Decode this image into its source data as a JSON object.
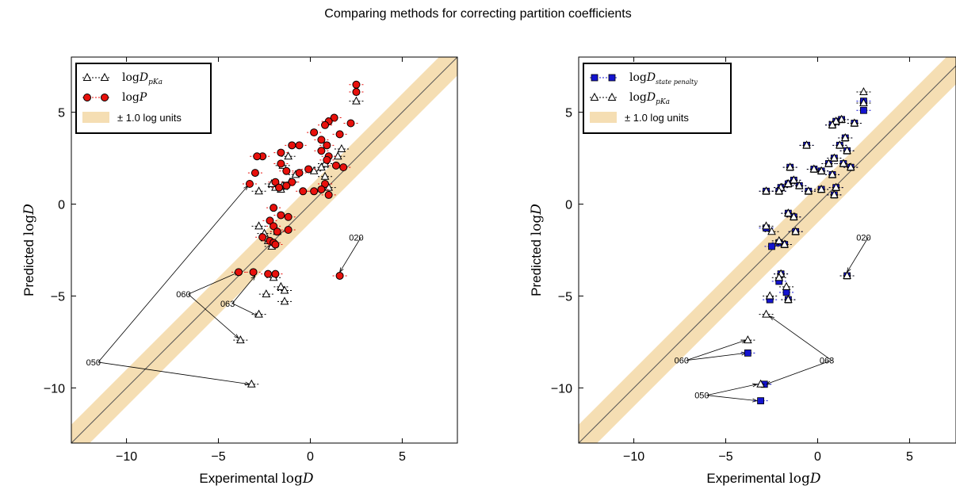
{
  "title": "Comparing methods for correcting partition coefficients",
  "colors": {
    "band": "#f5deb3",
    "red": "#e8110c",
    "blue": "#1414d0",
    "black": "#000000"
  },
  "chart_data": [
    {
      "type": "scatter",
      "xlabel": "Experimental logD",
      "ylabel": "Predicted logD",
      "xlim": [
        -13,
        8
      ],
      "ylim": [
        -13,
        8
      ],
      "xticks": [
        -10,
        -5,
        0,
        5
      ],
      "yticks": [
        -10,
        -5,
        0,
        5
      ],
      "band_half_width": 1.0,
      "legend_position": "upper left",
      "legend": [
        "logD pKa",
        "logP",
        "± 1.0 log units"
      ],
      "series": [
        {
          "name": "logD pKa",
          "marker": "open-triangle",
          "points": [
            [
              2.5,
              5.6
            ],
            [
              1.7,
              3.0
            ],
            [
              1.5,
              2.6
            ],
            [
              0.8,
              2.2
            ],
            [
              0.6,
              2.0
            ],
            [
              0.2,
              1.8
            ],
            [
              -0.8,
              1.6
            ],
            [
              -1.1,
              1.2
            ],
            [
              -1.5,
              1.0
            ],
            [
              -1.6,
              0.8
            ],
            [
              -1.9,
              0.9
            ],
            [
              -2.1,
              1.1
            ],
            [
              -2.8,
              0.7
            ],
            [
              -1.5,
              2.1
            ],
            [
              -1.2,
              2.6
            ],
            [
              0.8,
              1.5
            ],
            [
              1.0,
              0.9
            ],
            [
              -2.8,
              -1.2
            ],
            [
              -2.5,
              -1.6
            ],
            [
              -2.3,
              -2.0
            ],
            [
              -2.1,
              -2.3
            ],
            [
              -1.8,
              -1.5
            ],
            [
              -2.0,
              -4.0
            ],
            [
              -1.6,
              -4.5
            ],
            [
              -1.4,
              -4.7
            ],
            [
              -1.4,
              -5.3
            ],
            [
              -2.4,
              -4.9
            ],
            [
              -2.8,
              -6.0
            ],
            [
              -3.8,
              -7.4
            ],
            [
              -3.2,
              -9.8
            ]
          ]
        },
        {
          "name": "logP",
          "marker": "filled-circle",
          "points": [
            [
              2.5,
              6.5
            ],
            [
              2.5,
              6.1
            ],
            [
              1.3,
              4.7
            ],
            [
              1.0,
              4.5
            ],
            [
              0.8,
              4.3
            ],
            [
              2.2,
              4.4
            ],
            [
              1.6,
              3.8
            ],
            [
              0.2,
              3.9
            ],
            [
              -0.6,
              3.2
            ],
            [
              -1.0,
              3.2
            ],
            [
              0.6,
              3.5
            ],
            [
              0.9,
              3.2
            ],
            [
              -1.6,
              2.8
            ],
            [
              -1.6,
              2.2
            ],
            [
              -1.3,
              1.8
            ],
            [
              -2.6,
              2.6
            ],
            [
              -2.9,
              2.6
            ],
            [
              -3.0,
              1.7
            ],
            [
              -3.3,
              1.1
            ],
            [
              0.6,
              2.9
            ],
            [
              1.0,
              2.6
            ],
            [
              1.4,
              2.1
            ],
            [
              1.8,
              2.0
            ],
            [
              0.9,
              2.4
            ],
            [
              -0.1,
              1.9
            ],
            [
              -0.6,
              1.7
            ],
            [
              -1.0,
              1.2
            ],
            [
              -1.3,
              1.0
            ],
            [
              -1.9,
              1.2
            ],
            [
              -1.7,
              0.9
            ],
            [
              0.2,
              0.7
            ],
            [
              0.8,
              1.1
            ],
            [
              1.0,
              0.5
            ],
            [
              0.6,
              0.8
            ],
            [
              -0.4,
              0.7
            ],
            [
              -2.0,
              -0.2
            ],
            [
              -1.6,
              -0.6
            ],
            [
              -1.2,
              -0.7
            ],
            [
              -2.2,
              -0.9
            ],
            [
              -2.0,
              -1.2
            ],
            [
              -1.8,
              -1.5
            ],
            [
              -1.2,
              -1.4
            ],
            [
              -2.6,
              -1.8
            ],
            [
              -2.2,
              -2.0
            ],
            [
              -2.0,
              -2.1
            ],
            [
              -1.9,
              -2.2
            ],
            [
              -2.3,
              -3.8
            ],
            [
              -1.9,
              -3.8
            ],
            [
              -3.9,
              -3.7
            ],
            [
              -3.1,
              -3.7
            ],
            [
              1.6,
              -3.9
            ]
          ]
        }
      ],
      "annotations": [
        {
          "label": "020",
          "text_at": [
            2.5,
            -1.8
          ],
          "arrow_to": [
            1.6,
            -3.7
          ]
        },
        {
          "label": "060",
          "text_at": [
            -6.9,
            -4.9
          ],
          "arrow_to": [
            -3.9,
            -3.7
          ]
        },
        {
          "label": "060",
          "text_at": [
            -6.9,
            -4.9
          ],
          "arrow_to": [
            -3.9,
            -7.3
          ]
        },
        {
          "label": "063",
          "text_at": [
            -4.5,
            -5.4
          ],
          "arrow_to": [
            -3.0,
            -3.9
          ]
        },
        {
          "label": "063",
          "text_at": [
            -4.5,
            -5.4
          ],
          "arrow_to": [
            -2.8,
            -6.1
          ]
        },
        {
          "label": "050",
          "text_at": [
            -11.8,
            -8.6
          ],
          "arrow_to": [
            -3.4,
            1.0
          ]
        },
        {
          "label": "050",
          "text_at": [
            -11.8,
            -8.6
          ],
          "arrow_to": [
            -3.3,
            -9.8
          ]
        }
      ]
    },
    {
      "type": "scatter",
      "xlabel": "Experimental logD",
      "ylabel": "Predicted logD",
      "xlim": [
        -13,
        8
      ],
      "ylim": [
        -13,
        8
      ],
      "xticks": [
        -10,
        -5,
        0,
        5
      ],
      "yticks": [
        -10,
        -5,
        0,
        5
      ],
      "band_half_width": 1.0,
      "legend_position": "upper left",
      "legend": [
        "logD state penalty",
        "logD pKa",
        "± 1.0 log units"
      ],
      "series": [
        {
          "name": "logD state penalty",
          "marker": "filled-square",
          "points": [
            [
              2.5,
              5.6
            ],
            [
              2.5,
              5.1
            ],
            [
              1.3,
              4.6
            ],
            [
              1.0,
              4.5
            ],
            [
              0.8,
              4.3
            ],
            [
              2.0,
              4.4
            ],
            [
              1.5,
              3.6
            ],
            [
              -0.6,
              3.2
            ],
            [
              1.2,
              3.2
            ],
            [
              1.6,
              2.9
            ],
            [
              0.9,
              2.5
            ],
            [
              1.4,
              2.2
            ],
            [
              1.8,
              2.0
            ],
            [
              0.6,
              2.2
            ],
            [
              0.2,
              1.8
            ],
            [
              -1.5,
              2.0
            ],
            [
              -0.2,
              1.9
            ],
            [
              0.8,
              1.6
            ],
            [
              -1.3,
              1.3
            ],
            [
              -1.6,
              1.1
            ],
            [
              -1.0,
              1.0
            ],
            [
              -2.0,
              0.9
            ],
            [
              -2.1,
              0.7
            ],
            [
              -2.8,
              0.7
            ],
            [
              -0.5,
              0.7
            ],
            [
              0.2,
              0.8
            ],
            [
              1.0,
              0.9
            ],
            [
              0.9,
              0.5
            ],
            [
              -1.6,
              -0.5
            ],
            [
              -1.3,
              -0.7
            ],
            [
              -2.8,
              -1.3
            ],
            [
              -1.2,
              -1.5
            ],
            [
              -2.1,
              -2.1
            ],
            [
              -1.8,
              -2.2
            ],
            [
              -2.5,
              -2.3
            ],
            [
              -2.0,
              -3.8
            ],
            [
              -2.1,
              -4.2
            ],
            [
              -1.7,
              -4.8
            ],
            [
              -1.6,
              -5.2
            ],
            [
              -2.6,
              -5.2
            ],
            [
              -3.8,
              -8.1
            ],
            [
              -2.9,
              -9.8
            ],
            [
              -3.1,
              -10.7
            ],
            [
              1.6,
              -3.9
            ]
          ]
        },
        {
          "name": "logD pKa",
          "marker": "open-triangle",
          "points": [
            [
              2.5,
              6.1
            ],
            [
              2.5,
              5.5
            ],
            [
              1.3,
              4.6
            ],
            [
              1.0,
              4.5
            ],
            [
              0.8,
              4.3
            ],
            [
              2.0,
              4.4
            ],
            [
              1.5,
              3.6
            ],
            [
              -0.6,
              3.2
            ],
            [
              1.2,
              3.2
            ],
            [
              1.6,
              2.9
            ],
            [
              0.9,
              2.5
            ],
            [
              1.4,
              2.2
            ],
            [
              1.8,
              2.0
            ],
            [
              0.6,
              2.2
            ],
            [
              0.2,
              1.8
            ],
            [
              -1.5,
              2.0
            ],
            [
              -0.2,
              1.9
            ],
            [
              0.8,
              1.6
            ],
            [
              -1.3,
              1.3
            ],
            [
              -1.6,
              1.1
            ],
            [
              -1.0,
              1.0
            ],
            [
              -2.0,
              0.9
            ],
            [
              -2.1,
              0.7
            ],
            [
              -2.8,
              0.7
            ],
            [
              -0.5,
              0.7
            ],
            [
              0.2,
              0.8
            ],
            [
              1.0,
              0.9
            ],
            [
              0.9,
              0.5
            ],
            [
              -1.6,
              -0.5
            ],
            [
              -1.3,
              -0.7
            ],
            [
              -2.8,
              -1.2
            ],
            [
              -1.2,
              -1.5
            ],
            [
              -2.5,
              -1.5
            ],
            [
              -2.1,
              -2.0
            ],
            [
              -1.8,
              -2.2
            ],
            [
              -2.0,
              -3.8
            ],
            [
              -2.1,
              -4.0
            ],
            [
              -1.7,
              -4.5
            ],
            [
              -1.6,
              -5.2
            ],
            [
              -2.6,
              -5.0
            ],
            [
              -2.8,
              -6.0
            ],
            [
              -3.8,
              -7.4
            ],
            [
              -3.1,
              -9.8
            ],
            [
              1.6,
              -3.9
            ]
          ]
        }
      ],
      "annotations": [
        {
          "label": "020",
          "text_at": [
            2.5,
            -1.8
          ],
          "arrow_to": [
            1.6,
            -3.7
          ]
        },
        {
          "label": "060",
          "text_at": [
            -7.4,
            -8.5
          ],
          "arrow_to": [
            -3.9,
            -7.4
          ]
        },
        {
          "label": "060",
          "text_at": [
            -7.4,
            -8.5
          ],
          "arrow_to": [
            -3.9,
            -8.1
          ]
        },
        {
          "label": "063",
          "text_at": [
            0.5,
            -8.5
          ],
          "arrow_to": [
            -2.6,
            -6.1
          ]
        },
        {
          "label": "063",
          "text_at": [
            0.5,
            -8.5
          ],
          "arrow_to": [
            -2.8,
            -9.8
          ]
        },
        {
          "label": "050",
          "text_at": [
            -6.3,
            -10.4
          ],
          "arrow_to": [
            -3.3,
            -9.8
          ]
        },
        {
          "label": "050",
          "text_at": [
            -6.3,
            -10.4
          ],
          "arrow_to": [
            -3.3,
            -10.7
          ]
        }
      ]
    }
  ]
}
